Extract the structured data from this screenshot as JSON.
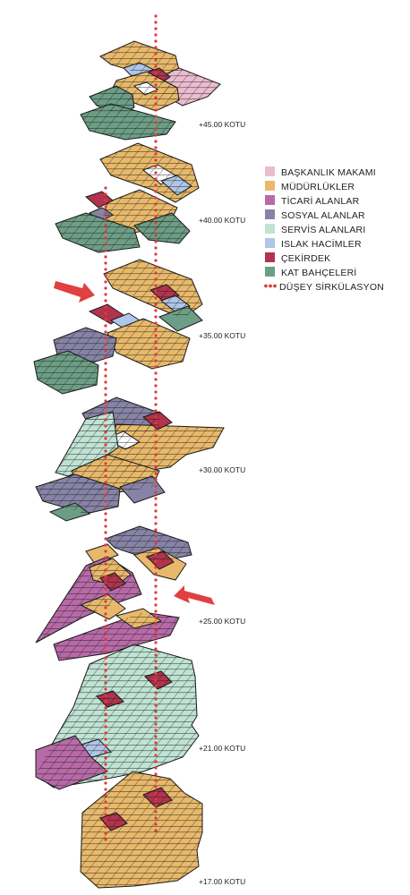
{
  "colors": {
    "baskanlik": "#ebbcd0",
    "mudurluk": "#e8b96a",
    "ticari": "#b86aa8",
    "sosyal": "#8683a6",
    "servis": "#bfe3d4",
    "islak": "#aec6e8",
    "cekirdek": "#b2334d",
    "bahce": "#6c9e85",
    "circulation": "#e03a3a",
    "arrow": "#e04040",
    "grid": "#1a1a1a"
  },
  "legend": [
    {
      "label": "BAŞKANLIK MAKAMI",
      "color": "baskanlik",
      "type": "swatch"
    },
    {
      "label": "MÜDÜRLÜKLER",
      "color": "mudurluk",
      "type": "swatch"
    },
    {
      "label": "TİCARİ ALANLAR",
      "color": "ticari",
      "type": "swatch"
    },
    {
      "label": "SOSYAL ALANLAR",
      "color": "sosyal",
      "type": "swatch"
    },
    {
      "label": "SERVİS ALANLARI",
      "color": "servis",
      "type": "swatch"
    },
    {
      "label": "ISLAK HACİMLER",
      "color": "islak",
      "type": "swatch"
    },
    {
      "label": "ÇEKİRDEK",
      "color": "cekirdek",
      "type": "swatch"
    },
    {
      "label": "KAT BAHÇELERİ",
      "color": "bahce",
      "type": "swatch"
    },
    {
      "label": "DÜŞEY SİRKÜLASYON",
      "color": "circulation",
      "type": "dots"
    }
  ],
  "levels": [
    {
      "label": "+45.00 KOTU"
    },
    {
      "label": "+40.00 KOTU"
    },
    {
      "label": "+35.00 KOTU"
    },
    {
      "label": "+30.00 KOTU"
    },
    {
      "label": "+25.00 KOTU"
    },
    {
      "label": "+21.00 KOTU"
    },
    {
      "label": "+17.00 KOTU"
    }
  ]
}
